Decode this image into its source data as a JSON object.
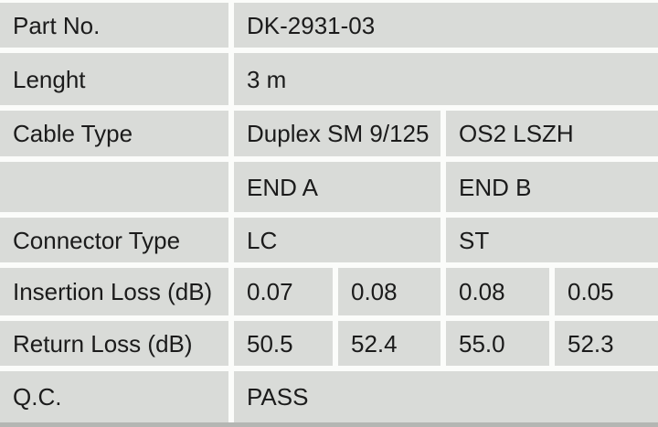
{
  "table": {
    "rows": [
      {
        "label": "Part No.",
        "value": "DK-2931-03"
      },
      {
        "label": "Lenght",
        "value": "3 m"
      },
      {
        "label": "Cable Type",
        "values": [
          "Duplex SM 9/125",
          "OS2 LSZH"
        ]
      },
      {
        "label": "",
        "values": [
          "END A",
          "END B"
        ]
      },
      {
        "label": "Connector Type",
        "values": [
          "LC",
          "ST"
        ]
      },
      {
        "label": "Insertion Loss (dB)",
        "values": [
          "0.07",
          "0.08",
          "0.08",
          "0.05"
        ]
      },
      {
        "label": "Return Loss (dB)",
        "values": [
          "50.5",
          "52.4",
          "55.0",
          "52.3"
        ]
      },
      {
        "label": "Q.C.",
        "value": "PASS"
      }
    ],
    "colors": {
      "cell_background": "#d9dbd8",
      "gap": "#fbfcfa",
      "text": "#1b1b1b",
      "bottom_strip": "#b4b6b3"
    }
  }
}
